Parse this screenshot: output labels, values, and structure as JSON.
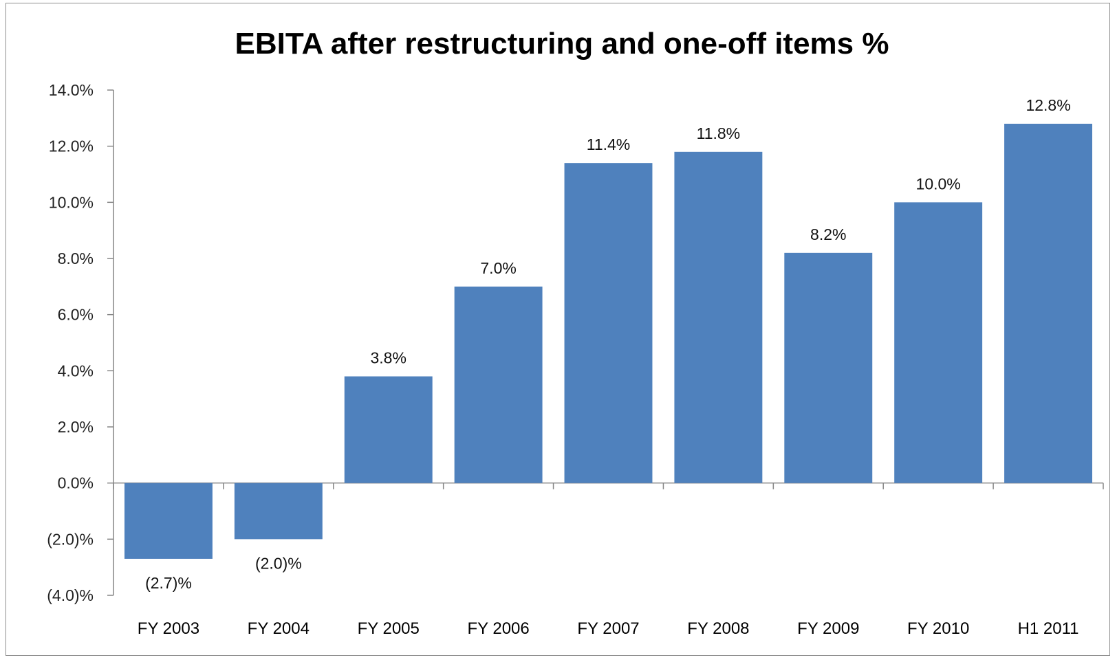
{
  "chart_data": {
    "type": "bar",
    "title": "EBITA after restructuring and one-off items %",
    "xlabel": "",
    "ylabel": "",
    "categories": [
      "FY 2003",
      "FY 2004",
      "FY 2005",
      "FY 2006",
      "FY 2007",
      "FY 2008",
      "FY 2009",
      "FY 2010",
      "H1 2011"
    ],
    "values": [
      -2.7,
      -2.0,
      3.8,
      7.0,
      11.4,
      11.8,
      8.2,
      10.0,
      12.8
    ],
    "data_labels": [
      "(2.7)%",
      "(2.0)%",
      "3.8%",
      "7.0%",
      "11.4%",
      "11.8%",
      "8.2%",
      "10.0%",
      "12.8%"
    ],
    "ylim": [
      -4,
      14
    ],
    "yticks": [
      -4,
      -2,
      0,
      2,
      4,
      6,
      8,
      10,
      12,
      14
    ],
    "ytick_labels": [
      "(4.0)%",
      "(2.0)%",
      "0.0%",
      "2.0%",
      "4.0%",
      "6.0%",
      "8.0%",
      "10.0%",
      "12.0%",
      "14.0%"
    ],
    "bar_color": "#4f81bd",
    "grid": false,
    "legend": "none"
  }
}
